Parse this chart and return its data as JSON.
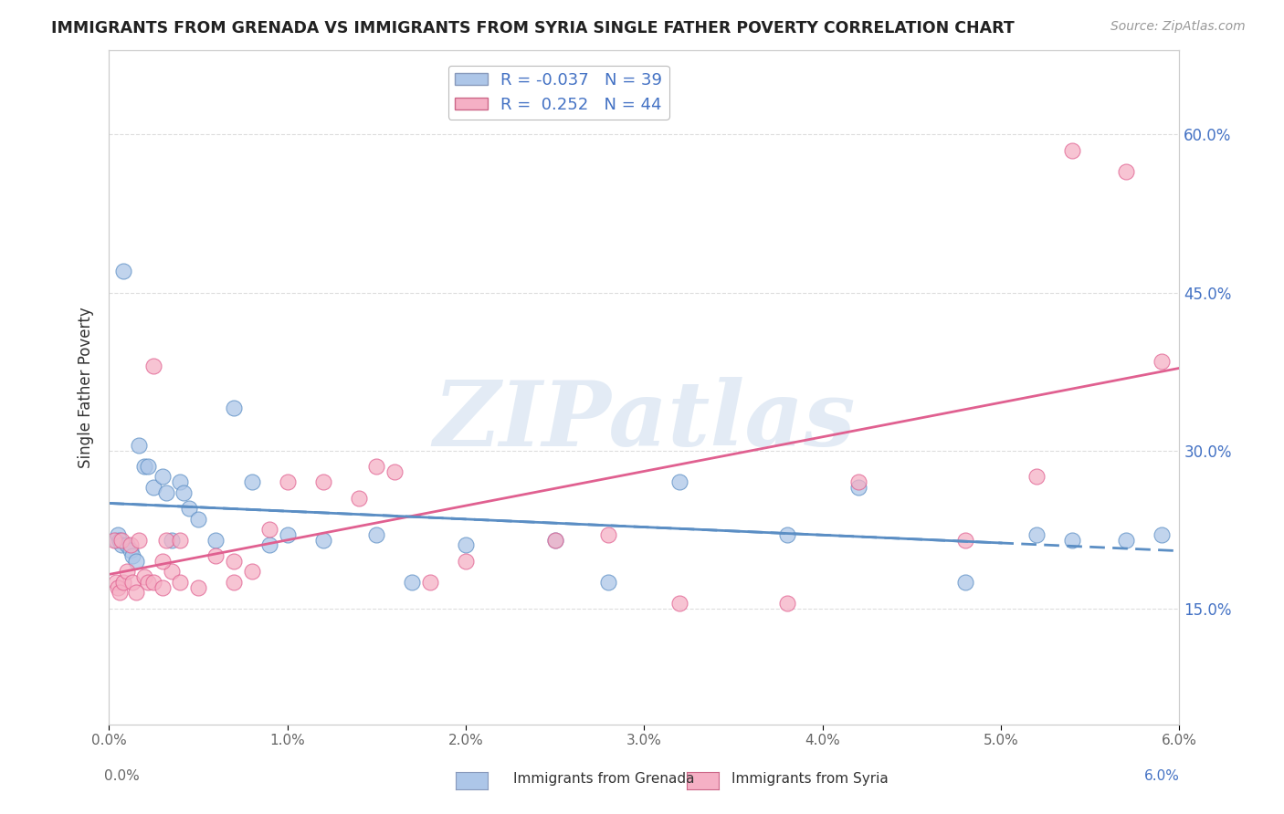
{
  "title": "IMMIGRANTS FROM GRENADA VS IMMIGRANTS FROM SYRIA SINGLE FATHER POVERTY CORRELATION CHART",
  "source": "Source: ZipAtlas.com",
  "xlabel_grenada": "Immigrants from Grenada",
  "xlabel_syria": "Immigrants from Syria",
  "ylabel": "Single Father Poverty",
  "grenada_R": -0.037,
  "grenada_N": 39,
  "syria_R": 0.252,
  "syria_N": 44,
  "xlim": [
    0.0,
    0.06
  ],
  "ylim": [
    0.04,
    0.68
  ],
  "yticks": [
    0.15,
    0.3,
    0.45,
    0.6
  ],
  "ytick_labels": [
    "15.0%",
    "30.0%",
    "45.0%",
    "60.0%"
  ],
  "xticks": [
    0.0,
    0.01,
    0.02,
    0.03,
    0.04,
    0.05,
    0.06
  ],
  "xtick_labels": [
    "0.0%",
    "1.0%",
    "2.0%",
    "3.0%",
    "4.0%",
    "5.0%",
    "6.0%"
  ],
  "color_grenada": "#adc6e8",
  "color_syria": "#f5b0c5",
  "color_grenada_line": "#5b8ec4",
  "color_syria_line": "#e06090",
  "watermark": "ZIPatlas",
  "background_color": "#ffffff",
  "grid_color": "#dddddd",
  "grenada_x": [
    0.0004,
    0.0005,
    0.0006,
    0.0007,
    0.0008,
    0.001,
    0.0012,
    0.0013,
    0.0015,
    0.0017,
    0.002,
    0.0022,
    0.0025,
    0.003,
    0.0032,
    0.0035,
    0.004,
    0.0042,
    0.0045,
    0.005,
    0.006,
    0.007,
    0.008,
    0.009,
    0.01,
    0.012,
    0.015,
    0.017,
    0.02,
    0.025,
    0.028,
    0.032,
    0.038,
    0.042,
    0.048,
    0.052,
    0.054,
    0.057,
    0.059
  ],
  "grenada_y": [
    0.215,
    0.22,
    0.215,
    0.21,
    0.47,
    0.21,
    0.205,
    0.2,
    0.195,
    0.305,
    0.285,
    0.285,
    0.265,
    0.275,
    0.26,
    0.215,
    0.27,
    0.26,
    0.245,
    0.235,
    0.215,
    0.34,
    0.27,
    0.21,
    0.22,
    0.215,
    0.22,
    0.175,
    0.21,
    0.215,
    0.175,
    0.27,
    0.22,
    0.265,
    0.175,
    0.22,
    0.215,
    0.215,
    0.22
  ],
  "syria_x": [
    0.0003,
    0.0004,
    0.0005,
    0.0006,
    0.0007,
    0.0008,
    0.001,
    0.0012,
    0.0013,
    0.0015,
    0.0017,
    0.002,
    0.0022,
    0.0025,
    0.003,
    0.0032,
    0.0035,
    0.004,
    0.005,
    0.006,
    0.007,
    0.008,
    0.009,
    0.01,
    0.012,
    0.014,
    0.015,
    0.016,
    0.018,
    0.02,
    0.025,
    0.028,
    0.032,
    0.038,
    0.042,
    0.048,
    0.052,
    0.054,
    0.057,
    0.059,
    0.0025,
    0.003,
    0.004,
    0.007
  ],
  "syria_y": [
    0.215,
    0.175,
    0.17,
    0.165,
    0.215,
    0.175,
    0.185,
    0.21,
    0.175,
    0.165,
    0.215,
    0.18,
    0.175,
    0.175,
    0.17,
    0.215,
    0.185,
    0.215,
    0.17,
    0.2,
    0.175,
    0.185,
    0.225,
    0.27,
    0.27,
    0.255,
    0.285,
    0.28,
    0.175,
    0.195,
    0.215,
    0.22,
    0.155,
    0.155,
    0.27,
    0.215,
    0.275,
    0.585,
    0.565,
    0.385,
    0.38,
    0.195,
    0.175,
    0.195
  ]
}
